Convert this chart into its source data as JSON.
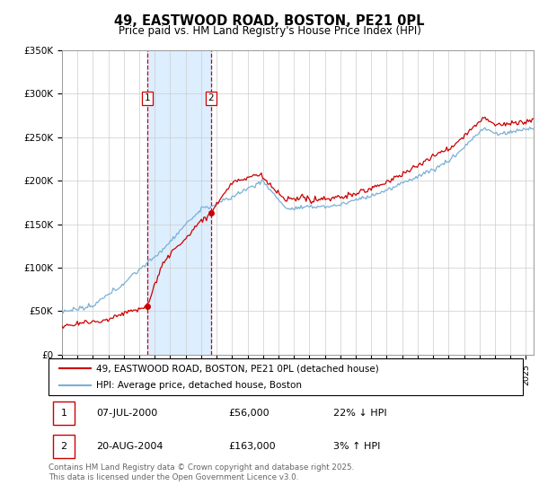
{
  "title": "49, EASTWOOD ROAD, BOSTON, PE21 0PL",
  "subtitle": "Price paid vs. HM Land Registry's House Price Index (HPI)",
  "ylabel_ticks": [
    "£0",
    "£50K",
    "£100K",
    "£150K",
    "£200K",
    "£250K",
    "£300K",
    "£350K"
  ],
  "ylim": [
    0,
    350000
  ],
  "xlim_start": 1995.0,
  "xlim_end": 2025.5,
  "sale1_date": 2000.52,
  "sale1_price": 56000,
  "sale1_label": "07-JUL-2000",
  "sale1_pct": "22% ↓ HPI",
  "sale2_date": 2004.64,
  "sale2_price": 163000,
  "sale2_label": "20-AUG-2004",
  "sale2_pct": "3% ↑ HPI",
  "red_color": "#cc0000",
  "blue_color": "#7ab0d4",
  "shade_color": "#ddeeff",
  "grid_color": "#cccccc",
  "legend_line1": "49, EASTWOOD ROAD, BOSTON, PE21 0PL (detached house)",
  "legend_line2": "HPI: Average price, detached house, Boston",
  "footer": "Contains HM Land Registry data © Crown copyright and database right 2025.\nThis data is licensed under the Open Government Licence v3.0.",
  "background_color": "#ffffff",
  "fig_width": 6.0,
  "fig_height": 5.6,
  "dpi": 100
}
